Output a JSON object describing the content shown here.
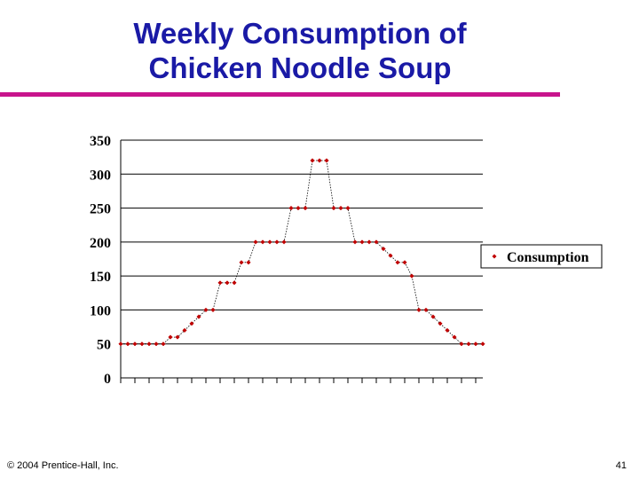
{
  "slide": {
    "title_line1": "Weekly Consumption of",
    "title_line2": "Chicken Noodle Soup",
    "copyright": "© 2004 Prentice-Hall, Inc.",
    "page_number": "41"
  },
  "colors": {
    "title": "#1a1aa6",
    "rule": "#c8148c",
    "series": "#c00000"
  },
  "chart_data": {
    "type": "line",
    "ylim": [
      0,
      350
    ],
    "yticks": [
      0,
      50,
      100,
      150,
      200,
      250,
      300,
      350
    ],
    "grid": true,
    "x_tick_labels": false,
    "legend": {
      "position": "right",
      "entries": [
        "Consumption"
      ]
    },
    "series": [
      {
        "name": "Consumption",
        "values": [
          50,
          50,
          50,
          50,
          50,
          50,
          50,
          60,
          60,
          70,
          80,
          90,
          100,
          100,
          140,
          140,
          140,
          170,
          170,
          200,
          200,
          200,
          200,
          200,
          250,
          250,
          250,
          320,
          320,
          320,
          250,
          250,
          250,
          200,
          200,
          200,
          200,
          190,
          180,
          170,
          170,
          150,
          100,
          100,
          90,
          80,
          70,
          60,
          50,
          50,
          50,
          50
        ]
      }
    ]
  }
}
